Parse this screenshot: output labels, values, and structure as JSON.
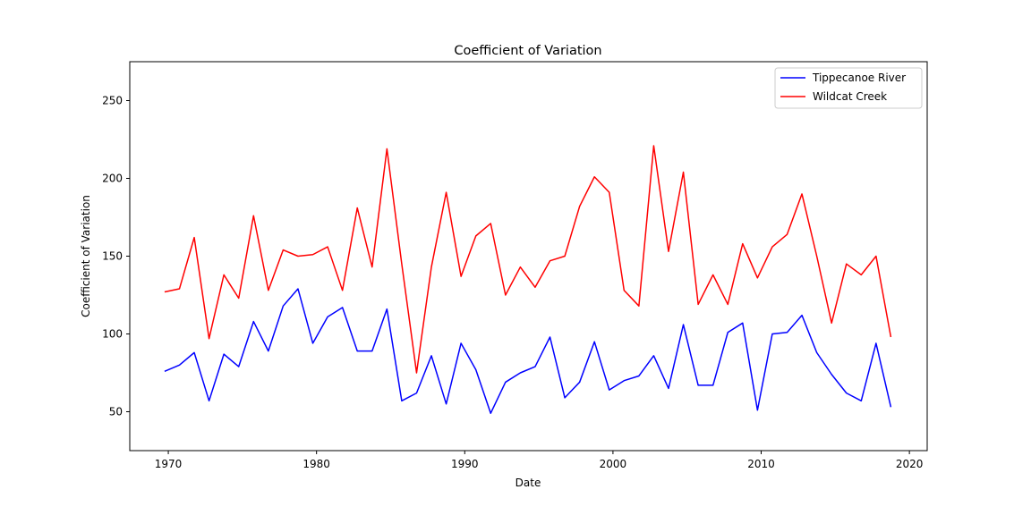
{
  "chart_data": {
    "type": "line",
    "title": "Coefficient of Variation",
    "xlabel": "Date",
    "ylabel": "Coefficient of Variation",
    "xlim": [
      1967.4,
      2021.2
    ],
    "ylim": [
      25,
      275
    ],
    "xticks": [
      1970,
      1980,
      1990,
      2000,
      2010,
      2020
    ],
    "yticks": [
      50,
      100,
      150,
      200,
      250
    ],
    "grid": false,
    "legend": "top-right",
    "x": [
      1969.75,
      1970.75,
      1971.75,
      1972.75,
      1973.75,
      1974.75,
      1975.75,
      1976.75,
      1977.75,
      1978.75,
      1979.75,
      1980.75,
      1981.75,
      1982.75,
      1983.75,
      1984.75,
      1985.75,
      1986.75,
      1987.75,
      1988.75,
      1989.75,
      1990.75,
      1991.75,
      1992.75,
      1993.75,
      1994.75,
      1995.75,
      1996.75,
      1997.75,
      1998.75,
      1999.75,
      2000.75,
      2001.75,
      2002.75,
      2003.75,
      2004.75,
      2005.75,
      2006.75,
      2007.75,
      2008.75,
      2009.75,
      2010.75,
      2011.75,
      2012.75,
      2013.75,
      2014.75,
      2015.75,
      2016.75,
      2017.75,
      2018.75
    ],
    "series": [
      {
        "name": "Tippecanoe River",
        "color": "#0000ff",
        "values": [
          76,
          80,
          88,
          57,
          87,
          79,
          108,
          89,
          118,
          129,
          94,
          111,
          117,
          89,
          89,
          116,
          57,
          62,
          86,
          55,
          94,
          77,
          49,
          69,
          75,
          79,
          98,
          59,
          69,
          95,
          64,
          70,
          73,
          86,
          65,
          106,
          67,
          67,
          101,
          107,
          51,
          100,
          101,
          112,
          88,
          74,
          62,
          57,
          94,
          53
        ]
      },
      {
        "name": "Wildcat Creek",
        "color": "#ff0000",
        "values": [
          127,
          129,
          162,
          97,
          138,
          123,
          176,
          128,
          154,
          150,
          151,
          156,
          128,
          181,
          143,
          219,
          145,
          75,
          143,
          191,
          137,
          163,
          171,
          125,
          143,
          130,
          147,
          150,
          182,
          201,
          191,
          128,
          118,
          221,
          153,
          204,
          119,
          138,
          119,
          158,
          136,
          156,
          164,
          190,
          150,
          107,
          145,
          138,
          150,
          98
        ]
      }
    ]
  }
}
